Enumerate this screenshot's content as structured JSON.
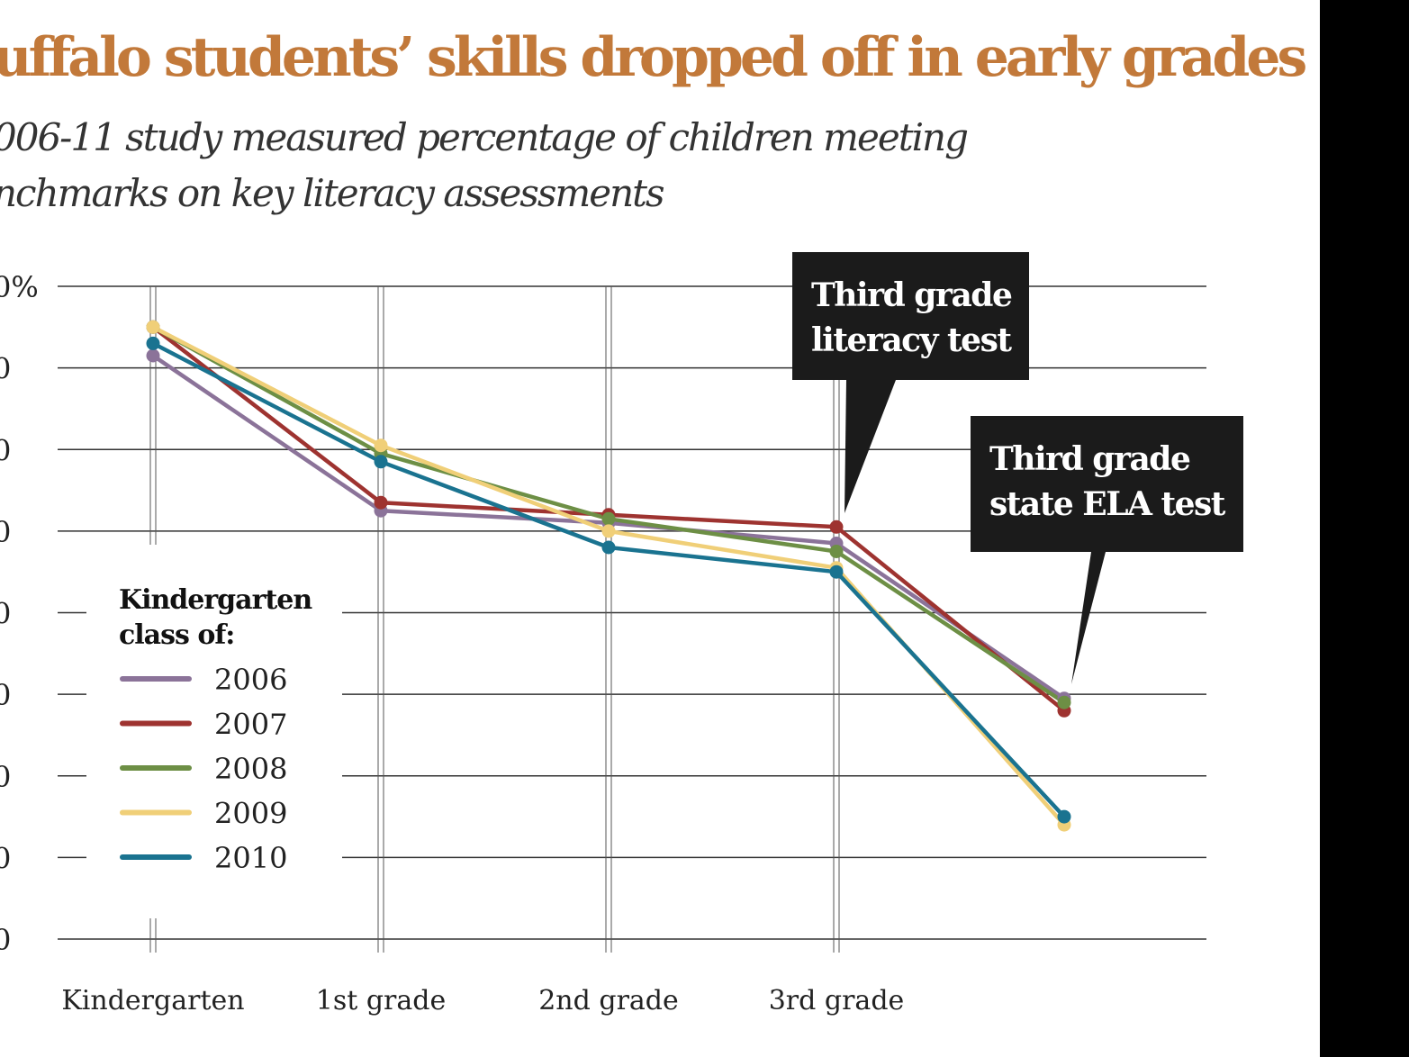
{
  "colors": {
    "title": "#c2793a",
    "grid": "#333333",
    "annotation_bg": "#1b1b1b",
    "annotation_text": "#ffffff"
  },
  "chart_data": {
    "type": "line",
    "title": "uffalo students’ skills dropped off in early grades",
    "subtitle": "006-11 study measured percentage of children meeting nchmarks on key literacy assessments",
    "categories": [
      "Kindergarten",
      "1st grade",
      "2nd grade",
      "3rd grade",
      ""
    ],
    "y_tick_labels": [
      "0%",
      "0",
      "0",
      "0",
      "0",
      "0",
      "0",
      "0",
      "0"
    ],
    "ylim": [
      20,
      100
    ],
    "grid": true,
    "legend": {
      "title": "Kindergarten class of:",
      "placement": "bottom-left"
    },
    "series": [
      {
        "name": "2006",
        "color": "#8b7399",
        "values": [
          91.5,
          72.5,
          71,
          68.5,
          49.5
        ]
      },
      {
        "name": "2007",
        "color": "#9e3330",
        "values": [
          95,
          73.5,
          72,
          70.5,
          48
        ]
      },
      {
        "name": "2008",
        "color": "#6d8f45",
        "values": [
          95,
          79.5,
          71.5,
          67.5,
          49
        ]
      },
      {
        "name": "2009",
        "color": "#f0cf78",
        "values": [
          95,
          80.5,
          70,
          65.5,
          34
        ]
      },
      {
        "name": "2010",
        "color": "#1a7390",
        "values": [
          93,
          78.5,
          68,
          65,
          35
        ]
      }
    ],
    "annotations": [
      {
        "text": "Third grade literacy test",
        "lines": [
          "Third grade",
          "literacy test"
        ],
        "points_to": "3rd grade"
      },
      {
        "text": "Third grade state ELA test",
        "lines": [
          "Third grade",
          "state ELA test"
        ],
        "points_to": ""
      }
    ]
  }
}
